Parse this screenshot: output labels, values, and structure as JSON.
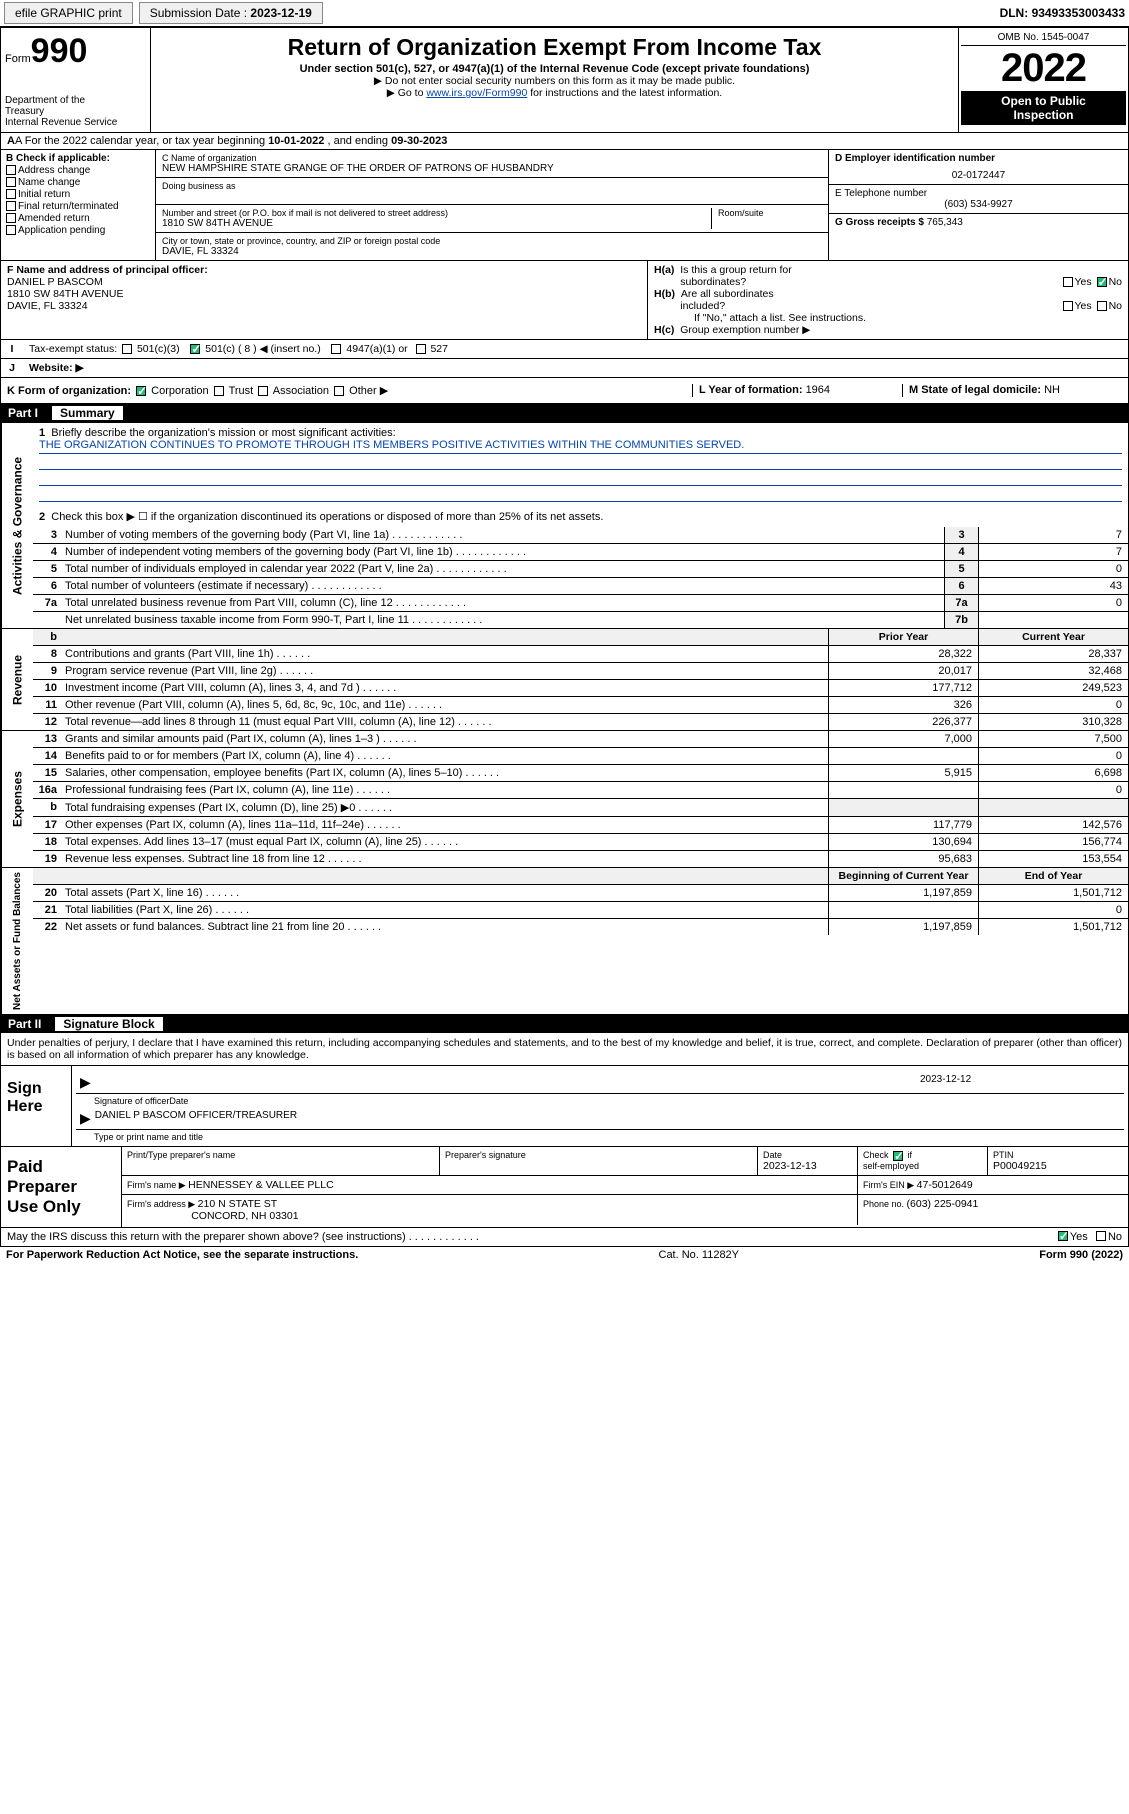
{
  "topbar": {
    "efile": "efile GRAPHIC print",
    "submission_label": "Submission Date : ",
    "submission_date": "2023-12-19",
    "dln_label": "DLN: ",
    "dln": "93493353003433"
  },
  "header": {
    "form_prefix": "Form",
    "form_no": "990",
    "dept": "Department of the Treasury\nInternal Revenue Service",
    "title": "Return of Organization Exempt From Income Tax",
    "sub1": "Under section 501(c), 527, or 4947(a)(1) of the Internal Revenue Code (except private foundations)",
    "sub2": "▶ Do not enter social security numbers on this form as it may be made public.",
    "sub3_pre": "▶ Go to ",
    "sub3_link": "www.irs.gov/Form990",
    "sub3_post": " for instructions and the latest information.",
    "omb": "OMB No. 1545-0047",
    "year": "2022",
    "public": "Open to Public Inspection"
  },
  "line_a": {
    "pre": "A For the 2022 calendar year, or tax year beginning ",
    "begin": "10-01-2022",
    "mid": " , and ending ",
    "end": "09-30-2023"
  },
  "b": {
    "label": "B Check if applicable:",
    "items": [
      "Address change",
      "Name change",
      "Initial return",
      "Final return/terminated",
      "Amended return",
      "Application pending"
    ]
  },
  "c": {
    "name_label": "C Name of organization",
    "name": "NEW HAMPSHIRE STATE GRANGE OF THE ORDER OF PATRONS OF HUSBANDRY",
    "dba_label": "Doing business as",
    "dba": "",
    "street_label": "Number and street (or P.O. box if mail is not delivered to street address)",
    "street": "1810 SW 84TH AVENUE",
    "room_label": "Room/suite",
    "room": "",
    "city_label": "City or town, state or province, country, and ZIP or foreign postal code",
    "city": "DAVIE, FL  33324"
  },
  "d": {
    "ein_label": "D Employer identification number",
    "ein": "02-0172447",
    "phone_label": "E Telephone number",
    "phone": "(603) 534-9927",
    "gross_label": "G Gross receipts $ ",
    "gross": "765,343"
  },
  "f": {
    "label": "F Name and address of principal officer:",
    "name": "DANIEL P BASCOM",
    "street": "1810 SW 84TH AVENUE",
    "city": "DAVIE, FL  33324"
  },
  "h": {
    "a": "H(a)  Is this a group return for subordinates?",
    "a_yes": "Yes",
    "a_no": "No",
    "b": "H(b)  Are all subordinates included?",
    "b_yes": "Yes",
    "b_no": "No",
    "b_note": "If \"No,\" attach a list. See instructions.",
    "c": "H(c)  Group exemption number ▶"
  },
  "i": {
    "label": "I",
    "text": "Tax-exempt status:",
    "opts": [
      "501(c)(3)",
      "501(c) ( 8 ) ◀ (insert no.)",
      "4947(a)(1) or",
      "527"
    ]
  },
  "j": {
    "label": "J",
    "text": "Website: ▶"
  },
  "k": {
    "label": "K Form of organization:",
    "opts": [
      "Corporation",
      "Trust",
      "Association",
      "Other ▶"
    ]
  },
  "l": {
    "label": "L Year of formation: ",
    "val": "1964"
  },
  "m": {
    "label": "M State of legal domicile: ",
    "val": "NH"
  },
  "part1": {
    "label": "Part I",
    "title": "Summary"
  },
  "summary": {
    "q1": "Briefly describe the organization's mission or most significant activities:",
    "q1a": "THE ORGANIZATION CONTINUES TO PROMOTE THROUGH ITS MEMBERS POSITIVE ACTIVITIES WITHIN THE COMMUNITIES SERVED.",
    "q2": "Check this box ▶ ☐  if the organization discontinued its operations or disposed of more than 25% of its net assets.",
    "rows_ag": [
      {
        "n": "3",
        "d": "Number of voting members of the governing body (Part VI, line 1a)",
        "b": "3",
        "v": "7"
      },
      {
        "n": "4",
        "d": "Number of independent voting members of the governing body (Part VI, line 1b)",
        "b": "4",
        "v": "7"
      },
      {
        "n": "5",
        "d": "Total number of individuals employed in calendar year 2022 (Part V, line 2a)",
        "b": "5",
        "v": "0"
      },
      {
        "n": "6",
        "d": "Total number of volunteers (estimate if necessary)",
        "b": "6",
        "v": "43"
      },
      {
        "n": "7a",
        "d": "Total unrelated business revenue from Part VIII, column (C), line 12",
        "b": "7a",
        "v": "0"
      },
      {
        "n": "",
        "d": "Net unrelated business taxable income from Form 990-T, Part I, line 11",
        "b": "7b",
        "v": ""
      }
    ],
    "head_prior": "Prior Year",
    "head_curr": "Current Year",
    "rows_rev": [
      {
        "n": "8",
        "d": "Contributions and grants (Part VIII, line 1h)",
        "p": "28,322",
        "c": "28,337"
      },
      {
        "n": "9",
        "d": "Program service revenue (Part VIII, line 2g)",
        "p": "20,017",
        "c": "32,468"
      },
      {
        "n": "10",
        "d": "Investment income (Part VIII, column (A), lines 3, 4, and 7d )",
        "p": "177,712",
        "c": "249,523"
      },
      {
        "n": "11",
        "d": "Other revenue (Part VIII, column (A), lines 5, 6d, 8c, 9c, 10c, and 11e)",
        "p": "326",
        "c": "0"
      },
      {
        "n": "12",
        "d": "Total revenue—add lines 8 through 11 (must equal Part VIII, column (A), line 12)",
        "p": "226,377",
        "c": "310,328"
      }
    ],
    "rows_exp": [
      {
        "n": "13",
        "d": "Grants and similar amounts paid (Part IX, column (A), lines 1–3 )",
        "p": "7,000",
        "c": "7,500"
      },
      {
        "n": "14",
        "d": "Benefits paid to or for members (Part IX, column (A), line 4)",
        "p": "",
        "c": "0"
      },
      {
        "n": "15",
        "d": "Salaries, other compensation, employee benefits (Part IX, column (A), lines 5–10)",
        "p": "5,915",
        "c": "6,698"
      },
      {
        "n": "16a",
        "d": "Professional fundraising fees (Part IX, column (A), line 11e)",
        "p": "",
        "c": "0"
      },
      {
        "n": "b",
        "d": "Total fundraising expenses (Part IX, column (D), line 25) ▶0",
        "p": "",
        "c": "",
        "nb": true
      },
      {
        "n": "17",
        "d": "Other expenses (Part IX, column (A), lines 11a–11d, 11f–24e)",
        "p": "117,779",
        "c": "142,576"
      },
      {
        "n": "18",
        "d": "Total expenses. Add lines 13–17 (must equal Part IX, column (A), line 25)",
        "p": "130,694",
        "c": "156,774"
      },
      {
        "n": "19",
        "d": "Revenue less expenses. Subtract line 18 from line 12",
        "p": "95,683",
        "c": "153,554"
      }
    ],
    "head_begin": "Beginning of Current Year",
    "head_end": "End of Year",
    "rows_net": [
      {
        "n": "20",
        "d": "Total assets (Part X, line 16)",
        "p": "1,197,859",
        "c": "1,501,712"
      },
      {
        "n": "21",
        "d": "Total liabilities (Part X, line 26)",
        "p": "",
        "c": "0"
      },
      {
        "n": "22",
        "d": "Net assets or fund balances. Subtract line 21 from line 20",
        "p": "1,197,859",
        "c": "1,501,712"
      }
    ],
    "vtabs": [
      "Activities & Governance",
      "Revenue",
      "Expenses",
      "Net Assets or Fund Balances"
    ]
  },
  "part2": {
    "label": "Part II",
    "title": "Signature Block"
  },
  "sig": {
    "decl": "Under penalties of perjury, I declare that I have examined this return, including accompanying schedules and statements, and to the best of my knowledge and belief, it is true, correct, and complete. Declaration of preparer (other than officer) is based on all information of which preparer has any knowledge.",
    "here": "Sign Here",
    "sig_of": "Signature of officer",
    "date_lbl": "Date",
    "date": "2023-12-12",
    "name": "DANIEL P BASCOM  OFFICER/TREASURER",
    "name_lbl": "Type or print name and title"
  },
  "prep": {
    "label": "Paid Preparer Use Only",
    "h1": "Print/Type preparer's name",
    "h2": "Preparer's signature",
    "h3": "Date",
    "h3v": "2023-12-13",
    "h4": "Check ☑ if self-employed",
    "h5": "PTIN",
    "h5v": "P00049215",
    "firm_lbl": "Firm's name    ▶ ",
    "firm": "HENNESSEY & VALLEE PLLC",
    "ein_lbl": "Firm's EIN ▶ ",
    "ein": "47-5012649",
    "addr_lbl": "Firm's address ▶ ",
    "addr1": "210 N STATE ST",
    "addr2": "CONCORD, NH  03301",
    "phone_lbl": "Phone no. ",
    "phone": "(603) 225-0941"
  },
  "footer": {
    "discuss": "May the IRS discuss this return with the preparer shown above? (see instructions)",
    "yes": "Yes",
    "no": "No",
    "pra": "For Paperwork Reduction Act Notice, see the separate instructions.",
    "cat": "Cat. No. 11282Y",
    "form": "Form 990 (2022)"
  }
}
